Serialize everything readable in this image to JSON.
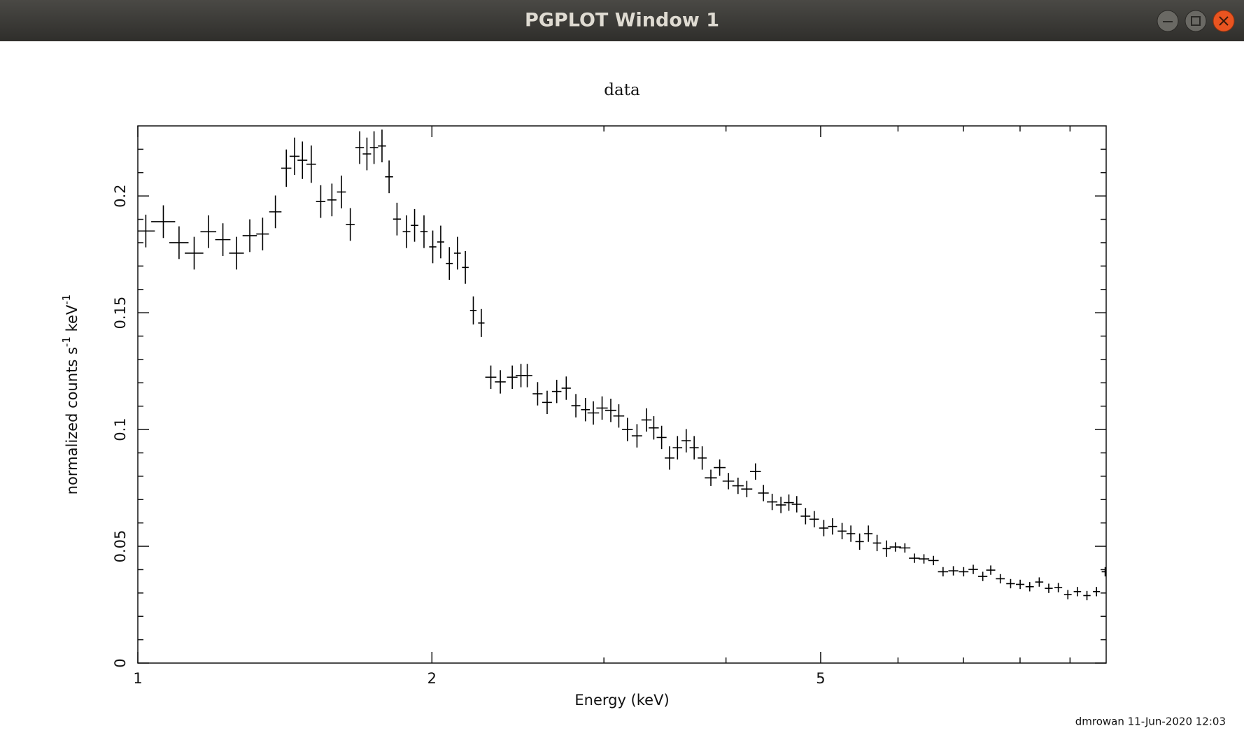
{
  "window": {
    "title": "PGPLOT Window 1"
  },
  "chart_data": {
    "type": "scatter",
    "title": "data",
    "xlabel": "Energy (keV)",
    "ylabel": [
      "normalized counts s",
      "-1",
      " keV",
      "-1"
    ],
    "x": [
      1.019,
      1.062,
      1.102,
      1.142,
      1.181,
      1.222,
      1.262,
      1.302,
      1.342,
      1.383,
      1.419,
      1.447,
      1.474,
      1.505,
      1.539,
      1.58,
      1.616,
      1.65,
      1.687,
      1.716,
      1.745,
      1.778,
      1.808,
      1.842,
      1.884,
      1.92,
      1.963,
      2.004,
      2.042,
      2.084,
      2.124,
      2.164,
      2.205,
      2.247,
      2.298,
      2.35,
      2.417,
      2.467,
      2.504,
      2.566,
      2.624,
      2.684,
      2.745,
      2.808,
      2.872,
      2.926,
      2.987,
      3.049,
      3.107,
      3.171,
      3.243,
      3.317,
      3.374,
      3.437,
      3.502,
      3.568,
      3.642,
      3.711,
      3.782,
      3.86,
      3.941,
      4.023,
      4.115,
      4.201,
      4.288,
      4.369,
      4.46,
      4.553,
      4.639,
      4.726,
      4.825,
      4.925,
      5.037,
      5.142,
      5.259,
      5.369,
      5.481,
      5.595,
      5.711,
      5.841,
      5.963,
      6.098,
      6.237,
      6.378,
      6.523,
      6.672,
      6.836,
      7.004,
      7.164,
      7.327,
      7.466,
      7.636,
      7.824,
      8.002,
      8.184,
      8.37,
      8.56,
      8.755,
      8.954,
      9.158,
      9.366,
      9.579,
      9.777
    ],
    "xerr": [
      0.022,
      0.03,
      0.025,
      0.025,
      0.022,
      0.022,
      0.022,
      0.022,
      0.02,
      0.02,
      0.017,
      0.017,
      0.017,
      0.017,
      0.017,
      0.017,
      0.017,
      0.017,
      0.017,
      0.017,
      0.017,
      0.017,
      0.017,
      0.017,
      0.017,
      0.017,
      0.017,
      0.017,
      0.017,
      0.017,
      0.017,
      0.017,
      0.017,
      0.017,
      0.03,
      0.03,
      0.03,
      0.03,
      0.03,
      0.03,
      0.03,
      0.03,
      0.03,
      0.03,
      0.03,
      0.04,
      0.04,
      0.04,
      0.04,
      0.04,
      0.04,
      0.04,
      0.04,
      0.04,
      0.04,
      0.04,
      0.04,
      0.04,
      0.04,
      0.055,
      0.055,
      0.055,
      0.055,
      0.055,
      0.055,
      0.055,
      0.055,
      0.055,
      0.055,
      0.055,
      0.055,
      0.055,
      0.055,
      0.055,
      0.055,
      0.055,
      0.055,
      0.055,
      0.055,
      0.055,
      0.08,
      0.08,
      0.08,
      0.08,
      0.08,
      0.08,
      0.08,
      0.08,
      0.08,
      0.08,
      0.08,
      0.08,
      0.08,
      0.08,
      0.08,
      0.08,
      0.08,
      0.08,
      0.08,
      0.08,
      0.08,
      0.08,
      0.08
    ],
    "values": [
      0.185,
      0.189,
      0.18,
      0.1755,
      0.1847,
      0.1813,
      0.1755,
      0.183,
      0.1837,
      0.1932,
      0.2119,
      0.217,
      0.2153,
      0.2136,
      0.1976,
      0.1983,
      0.2017,
      0.1878,
      0.2207,
      0.218,
      0.2207,
      0.2214,
      0.2082,
      0.1901,
      0.1847,
      0.1874,
      0.1847,
      0.1782,
      0.1803,
      0.1711,
      0.1755,
      0.1694,
      0.151,
      0.1456,
      0.1224,
      0.1204,
      0.1224,
      0.1231,
      0.1231,
      0.1153,
      0.1116,
      0.1163,
      0.1177,
      0.1102,
      0.1085,
      0.1071,
      0.1092,
      0.1082,
      0.1058,
      0.1,
      0.0973,
      0.1041,
      0.1007,
      0.0966,
      0.0878,
      0.0922,
      0.0952,
      0.0922,
      0.0878,
      0.0793,
      0.0837,
      0.0779,
      0.0759,
      0.0745,
      0.082,
      0.0728,
      0.069,
      0.0677,
      0.0687,
      0.068,
      0.0629,
      0.0616,
      0.0578,
      0.0585,
      0.0565,
      0.0554,
      0.052,
      0.0554,
      0.0514,
      0.049,
      0.0497,
      0.0493,
      0.0449,
      0.0446,
      0.0439,
      0.0391,
      0.0395,
      0.0391,
      0.0401,
      0.0371,
      0.0398,
      0.0361,
      0.034,
      0.0337,
      0.0327,
      0.0347,
      0.032,
      0.0323,
      0.0293,
      0.0306,
      0.0289,
      0.0306,
      0.0391
    ],
    "yerr": [
      0.007,
      0.007,
      0.007,
      0.007,
      0.007,
      0.007,
      0.007,
      0.007,
      0.007,
      0.007,
      0.008,
      0.008,
      0.008,
      0.008,
      0.007,
      0.007,
      0.007,
      0.007,
      0.007,
      0.007,
      0.007,
      0.007,
      0.007,
      0.007,
      0.007,
      0.007,
      0.007,
      0.007,
      0.007,
      0.007,
      0.007,
      0.007,
      0.006,
      0.006,
      0.005,
      0.005,
      0.005,
      0.005,
      0.005,
      0.005,
      0.005,
      0.005,
      0.005,
      0.005,
      0.005,
      0.005,
      0.005,
      0.005,
      0.005,
      0.005,
      0.005,
      0.005,
      0.005,
      0.005,
      0.005,
      0.005,
      0.005,
      0.005,
      0.005,
      0.0035,
      0.0035,
      0.0035,
      0.0035,
      0.0035,
      0.0035,
      0.0035,
      0.0035,
      0.0035,
      0.0035,
      0.0035,
      0.0035,
      0.0035,
      0.0035,
      0.0035,
      0.0035,
      0.0035,
      0.0035,
      0.0035,
      0.0035,
      0.0035,
      0.002,
      0.002,
      0.002,
      0.002,
      0.002,
      0.002,
      0.002,
      0.002,
      0.002,
      0.002,
      0.002,
      0.002,
      0.002,
      0.002,
      0.002,
      0.002,
      0.002,
      0.002,
      0.002,
      0.002,
      0.002,
      0.002,
      0.002
    ],
    "color": "#000000",
    "xlog": true,
    "xlim": [
      1,
      9.8
    ],
    "xticks": [
      1,
      2,
      5
    ],
    "xminorticks": [
      3,
      4,
      6,
      7,
      8,
      9
    ],
    "ylim": [
      0,
      0.23
    ],
    "yticks": [
      0,
      0.05,
      0.1,
      0.15,
      0.2
    ],
    "yminorticks": [
      0.01,
      0.02,
      0.03,
      0.04,
      0.06,
      0.07,
      0.08,
      0.09,
      0.11,
      0.12,
      0.13,
      0.14,
      0.16,
      0.17,
      0.18,
      0.19,
      0.21,
      0.22
    ],
    "grid": false
  },
  "footer": "dmrowan 11-Jun-2020 12:03"
}
